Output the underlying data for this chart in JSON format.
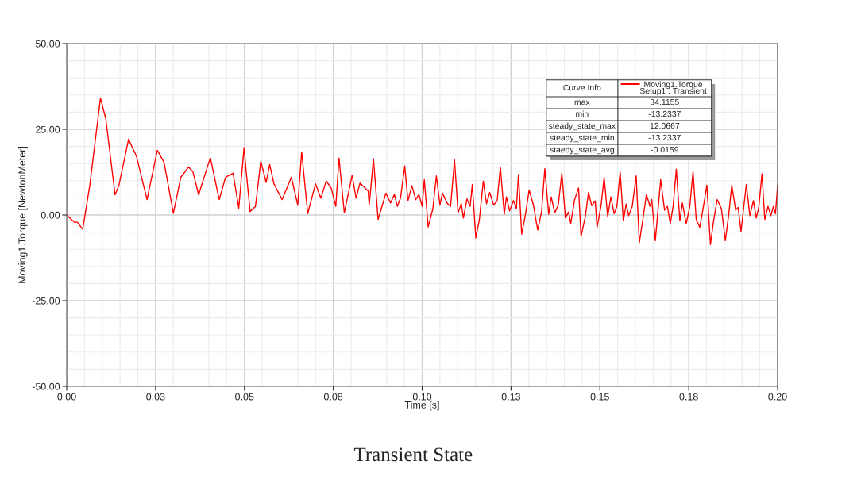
{
  "chart_data": {
    "type": "line",
    "xlabel": "Time [s]",
    "ylabel": "Moving1.Torque [NewtonMeter]",
    "xlim": [
      0,
      0.2
    ],
    "ylim": [
      -50,
      50
    ],
    "xticks": [
      {
        "value": 0,
        "label": "0.00"
      },
      {
        "value": 0.025,
        "label": "0.03"
      },
      {
        "value": 0.05,
        "label": "0.05"
      },
      {
        "value": 0.075,
        "label": "0.08"
      },
      {
        "value": 0.1,
        "label": "0.10"
      },
      {
        "value": 0.125,
        "label": "0.13"
      },
      {
        "value": 0.15,
        "label": "0.15"
      },
      {
        "value": 0.175,
        "label": "0.18"
      },
      {
        "value": 0.2,
        "label": "0.20"
      }
    ],
    "yticks": [
      {
        "value": -50,
        "label": "-50.00"
      },
      {
        "value": -25,
        "label": "-25.00"
      },
      {
        "value": 0,
        "label": "0.00"
      },
      {
        "value": 25,
        "label": "25.00"
      },
      {
        "value": 50,
        "label": "50.00"
      }
    ],
    "grid": true,
    "legend": "top right",
    "marker": "none",
    "line_style": "solid",
    "series": [
      {
        "name": "Moving1.Torque\nSetup1 : Transient",
        "color": "#ff0000",
        "x": [
          0,
          0.0021,
          0.003,
          0.0045,
          0.0065,
          0.0095,
          0.011,
          0.0136,
          0.0147,
          0.0174,
          0.0196,
          0.0226,
          0.0255,
          0.0274,
          0.03,
          0.0321,
          0.0343,
          0.0355,
          0.0371,
          0.0404,
          0.0429,
          0.0447,
          0.0468,
          0.0484,
          0.0499,
          0.0505,
          0.0516,
          0.0531,
          0.0546,
          0.0561,
          0.0571,
          0.0583,
          0.0606,
          0.0632,
          0.065,
          0.0661,
          0.0678,
          0.07,
          0.0715,
          0.073,
          0.0744,
          0.0757,
          0.0766,
          0.0781,
          0.0803,
          0.0814,
          0.0825,
          0.0848,
          0.0851,
          0.0863,
          0.0876,
          0.0885,
          0.0898,
          0.0911,
          0.0922,
          0.093,
          0.0939,
          0.0951,
          0.096,
          0.0971,
          0.0982,
          0.0991,
          0.1,
          0.1006,
          0.1017,
          0.103,
          0.104,
          0.105,
          0.1057,
          0.107,
          0.108,
          0.1091,
          0.1101,
          0.111,
          0.1116,
          0.1126,
          0.1135,
          0.1141,
          0.1151,
          0.1161,
          0.1172,
          0.1181,
          0.119,
          0.1201,
          0.1211,
          0.122,
          0.1231,
          0.1237,
          0.1246,
          0.1257,
          0.1265,
          0.1271,
          0.128,
          0.129,
          0.1301,
          0.1313,
          0.1325,
          0.1336,
          0.1345,
          0.1356,
          0.1363,
          0.1373,
          0.1383,
          0.1393,
          0.1403,
          0.1412,
          0.1418,
          0.1429,
          0.144,
          0.1447,
          0.1459,
          0.1468,
          0.1477,
          0.1487,
          0.1492,
          0.1503,
          0.1512,
          0.1522,
          0.1531,
          0.154,
          0.1548,
          0.1557,
          0.1566,
          0.1574,
          0.1581,
          0.1591,
          0.1602,
          0.1611,
          0.1622,
          0.1631,
          0.1641,
          0.1646,
          0.1656,
          0.1671,
          0.1682,
          0.169,
          0.1698,
          0.1706,
          0.1715,
          0.1725,
          0.1732,
          0.1743,
          0.1753,
          0.1762,
          0.1771,
          0.1781,
          0.1792,
          0.1801,
          0.1811,
          0.182,
          0.183,
          0.1842,
          0.1853,
          0.1863,
          0.1871,
          0.1882,
          0.1889,
          0.1897,
          0.1912,
          0.1922,
          0.1932,
          0.194,
          0.1947,
          0.1956,
          0.1964,
          0.1973,
          0.1981,
          0.1988,
          0.1994,
          0.2
        ],
        "values": [
          0,
          -2.1,
          -2.1,
          -4.2,
          8.7,
          34.1,
          28,
          5.9,
          8.7,
          22.1,
          17.2,
          4.5,
          18.9,
          15.3,
          0.5,
          11.0,
          14.0,
          12.6,
          5.9,
          16.7,
          4.5,
          11.0,
          12.2,
          2.0,
          19.7,
          12.6,
          1.0,
          2.5,
          15.7,
          9.5,
          14.7,
          9.1,
          4.5,
          11.0,
          2.9,
          18.4,
          0.4,
          9.1,
          4.9,
          9.9,
          7.9,
          2.5,
          16.6,
          0.6,
          11.6,
          4.9,
          9.3,
          7.0,
          2.9,
          16.4,
          -1.3,
          1.8,
          6.4,
          3.5,
          6.0,
          2.5,
          4.9,
          14.3,
          4.1,
          8.6,
          4.5,
          6.0,
          2.5,
          10.3,
          -3.5,
          1.8,
          11.4,
          2.9,
          6.4,
          3.5,
          2.5,
          16.1,
          0.6,
          3.3,
          -0.9,
          4.7,
          2.5,
          8.9,
          -6.7,
          -1.3,
          9.9,
          3.3,
          6.6,
          2.9,
          4.1,
          14.0,
          0.2,
          5.3,
          1.2,
          4.2,
          1.8,
          11.8,
          -5.6,
          -0.2,
          7.3,
          2.9,
          -4.4,
          1.0,
          13.5,
          0.2,
          5.3,
          0.6,
          2.9,
          12.2,
          -0.9,
          0.9,
          -2.5,
          4.5,
          7.9,
          -6.3,
          -0.5,
          6.6,
          2.7,
          4.1,
          -3.6,
          2.5,
          11.0,
          -0.5,
          5.3,
          0.4,
          2.5,
          12.6,
          -1.7,
          3.2,
          -0.2,
          2.5,
          11.4,
          -8.1,
          -0.5,
          6.0,
          2.5,
          4.5,
          -7.5,
          10.3,
          1.4,
          2.5,
          -2.5,
          2.5,
          13.4,
          -1.7,
          3.5,
          -2.5,
          2.5,
          12.6,
          -1.3,
          -3.6,
          2.9,
          8.7,
          -8.6,
          -1.7,
          4.5,
          1.8,
          -7.5,
          0.6,
          8.7,
          1.4,
          2.2,
          -4.8,
          8.9,
          -0.2,
          4.2,
          -0.9,
          2.2,
          12.0,
          -1.3,
          2.5,
          -0.2,
          2.5,
          0.4,
          8.6
        ]
      }
    ],
    "annotations": [
      "Curve Info",
      "max",
      "34.1155",
      "min",
      "-13.2337",
      "steady_state_max",
      "12.0667",
      "steady_state_min",
      "-13.2337",
      "staedy_state_avg",
      "-0.0159",
      "Transient State"
    ]
  }
}
